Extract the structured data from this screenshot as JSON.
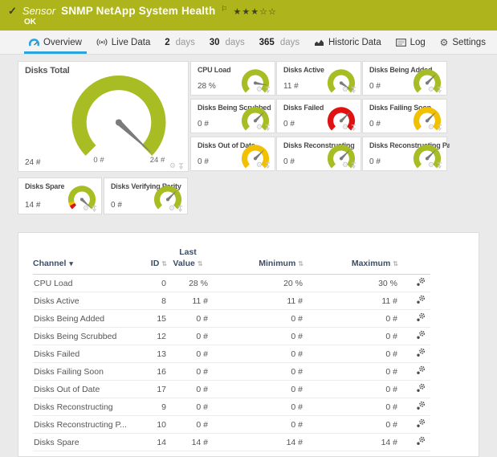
{
  "colors": {
    "green": "#a7bd23",
    "yellow": "#f1c000",
    "red": "#df1111",
    "needle": "#7b7b7b",
    "header_bg": "#aeb41c",
    "accent_blue": "#2ba3dc"
  },
  "header": {
    "check_icon": "✓",
    "sensor_label": "Sensor",
    "title": "SNMP NetApp System Health",
    "flag_icon": "⚐",
    "stars_filled": "★★★",
    "stars_empty": "☆☆",
    "status": "OK"
  },
  "tabs": [
    {
      "id": "overview",
      "icon": "gauge-icon",
      "label": "Overview",
      "active": true
    },
    {
      "id": "live-data",
      "icon": "live-icon",
      "label": "Live Data"
    },
    {
      "id": "2-days",
      "strong": "2",
      "label": "days"
    },
    {
      "id": "30-days",
      "strong": "30",
      "label": "days"
    },
    {
      "id": "365-days",
      "strong": "365",
      "label": "days"
    },
    {
      "id": "historic-data",
      "icon": "chart-icon",
      "label": "Historic Data"
    },
    {
      "id": "log",
      "icon": "log-icon",
      "label": "Log"
    },
    {
      "id": "settings",
      "icon": "gear-icon",
      "label": "Settings"
    }
  ],
  "gauges": {
    "main": {
      "title": "Disks Total",
      "value": "24 #",
      "scale_min": "0 #",
      "scale_max": "24 #",
      "color": "green",
      "needle_deg": 133
    },
    "small": [
      {
        "title": "CPU Load",
        "value": "28 %",
        "color": "green",
        "needle_deg": 100
      },
      {
        "title": "Disks Active",
        "value": "11 #",
        "color": "green",
        "needle_deg": 125
      },
      {
        "title": "Disks Being Added",
        "value": "0 #",
        "color": "green",
        "needle_deg": 45
      },
      {
        "title": "Disks Being Scrubbed",
        "value": "0 #",
        "color": "green",
        "needle_deg": 45
      },
      {
        "title": "Disks Failed",
        "value": "0 #",
        "color": "red",
        "needle_deg": 45
      },
      {
        "title": "Disks Failing Soon",
        "value": "0 #",
        "color": "yellow",
        "needle_deg": 45
      },
      {
        "title": "Disks Out of Date",
        "value": "0 #",
        "color": "yellow",
        "needle_deg": 45
      },
      {
        "title": "Disks Reconstructing",
        "value": "0 #",
        "color": "green",
        "needle_deg": 45
      },
      {
        "title": "Disks Reconstructing Parity",
        "value": "0 #",
        "color": "green",
        "needle_deg": 45
      }
    ],
    "bottom": [
      {
        "title": "Disks Spare",
        "value": "14 #",
        "color": "green",
        "needle_deg": 133,
        "segments": [
          [
            "red",
            -135,
            -117
          ],
          [
            "yellow",
            -117,
            -104
          ],
          [
            "green",
            -104,
            135
          ]
        ]
      },
      {
        "title": "Disks Verifying Parity",
        "value": "0 #",
        "color": "green",
        "needle_deg": 45
      }
    ]
  },
  "table": {
    "columns": [
      {
        "label": "Channel",
        "sorted": true
      },
      {
        "label": "ID",
        "sortable": true
      },
      {
        "label": "Last Value",
        "sortable": true,
        "two_line": true
      },
      {
        "label": "Minimum",
        "sortable": true
      },
      {
        "label": "Maximum",
        "sortable": true
      },
      {
        "label": ""
      }
    ],
    "rows": [
      {
        "channel": "CPU Load",
        "id": "0",
        "last": "28 %",
        "min": "20 %",
        "max": "30 %"
      },
      {
        "channel": "Disks Active",
        "id": "8",
        "last": "11 #",
        "min": "11 #",
        "max": "11 #"
      },
      {
        "channel": "Disks Being Added",
        "id": "15",
        "last": "0 #",
        "min": "0 #",
        "max": "0 #"
      },
      {
        "channel": "Disks Being Scrubbed",
        "id": "12",
        "last": "0 #",
        "min": "0 #",
        "max": "0 #"
      },
      {
        "channel": "Disks Failed",
        "id": "13",
        "last": "0 #",
        "min": "0 #",
        "max": "0 #"
      },
      {
        "channel": "Disks Failing Soon",
        "id": "16",
        "last": "0 #",
        "min": "0 #",
        "max": "0 #"
      },
      {
        "channel": "Disks Out of Date",
        "id": "17",
        "last": "0 #",
        "min": "0 #",
        "max": "0 #"
      },
      {
        "channel": "Disks Reconstructing",
        "id": "9",
        "last": "0 #",
        "min": "0 #",
        "max": "0 #"
      },
      {
        "channel": "Disks Reconstructing P...",
        "id": "10",
        "last": "0 #",
        "min": "0 #",
        "max": "0 #"
      },
      {
        "channel": "Disks Spare",
        "id": "14",
        "last": "14 #",
        "min": "14 #",
        "max": "14 #"
      }
    ]
  }
}
